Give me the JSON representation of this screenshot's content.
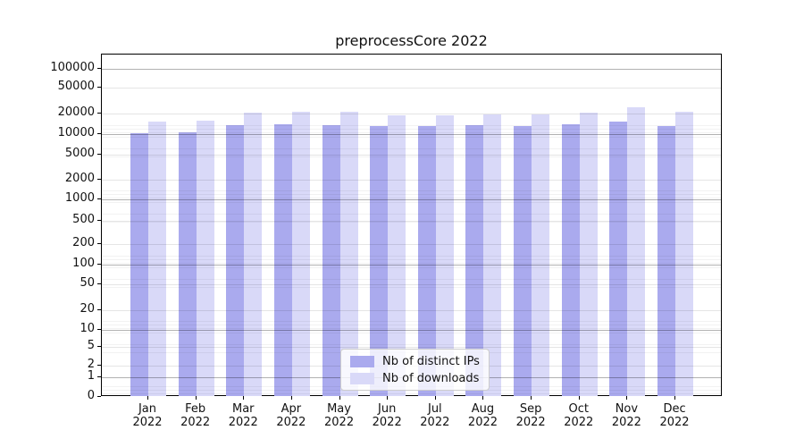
{
  "chart_data": {
    "type": "bar",
    "title": "preprocessCore 2022",
    "scale": "symlog-y",
    "grid": true,
    "legend_position": "lower center",
    "categories": [
      "Jan 2022",
      "Feb 2022",
      "Mar 2022",
      "Apr 2022",
      "May 2022",
      "Jun 2022",
      "Jul 2022",
      "Aug 2022",
      "Sep 2022",
      "Oct 2022",
      "Nov 2022",
      "Dec 2022"
    ],
    "y_ticks": [
      100000,
      50000,
      20000,
      10000,
      5000,
      2000,
      1000,
      500,
      200,
      100,
      50,
      20,
      10,
      5,
      2,
      1,
      0
    ],
    "ylim": [
      0,
      165000
    ],
    "xlabel": "",
    "ylabel": "",
    "series": [
      {
        "name": "Nb of distinct IPs",
        "color": "#aaaaee",
        "values": [
          10200,
          10600,
          13800,
          14000,
          13900,
          13100,
          13300,
          13600,
          13200,
          14100,
          15700,
          13200
        ]
      },
      {
        "name": "Nb of downloads",
        "color": "#d9d9f8",
        "values": [
          15500,
          15800,
          21500,
          22000,
          21800,
          19300,
          19600,
          20300,
          20100,
          21600,
          25400,
          21800
        ]
      }
    ],
    "colors": {
      "major_gridline": "rgba(0,0,0,0.30)",
      "labeled_gridline": "rgba(0,0,0,0.10)",
      "minor_gridline": "rgba(0,0,0,0.05)",
      "spine": "#000000",
      "text": "#111111"
    }
  }
}
